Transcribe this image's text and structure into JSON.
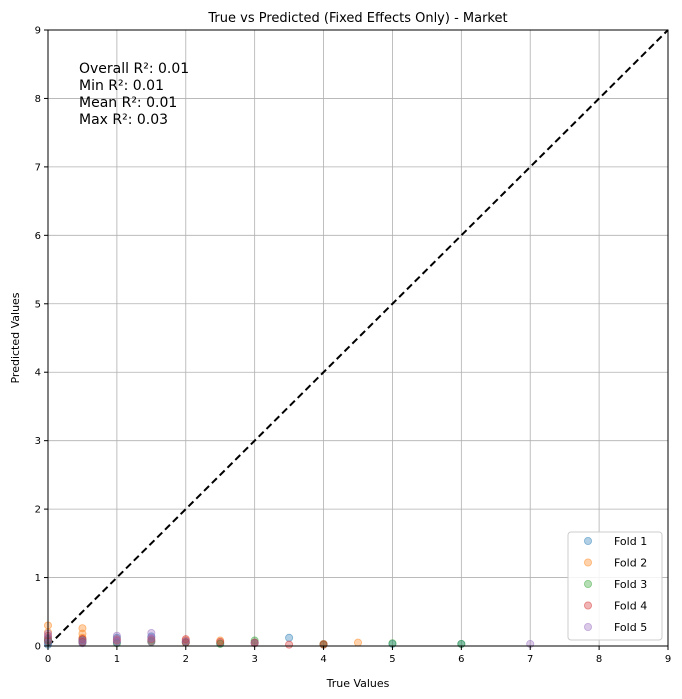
{
  "chart_data": {
    "type": "scatter",
    "title": "True vs Predicted (Fixed Effects Only) - Market",
    "xlabel": "True Values",
    "ylabel": "Predicted Values",
    "xlim": [
      0,
      9
    ],
    "ylim": [
      0,
      9
    ],
    "xticks": [
      "0",
      "1",
      "2",
      "3",
      "4",
      "5",
      "6",
      "7",
      "8",
      "9"
    ],
    "yticks": [
      "0",
      "1",
      "2",
      "3",
      "4",
      "5",
      "6",
      "7",
      "8",
      "9"
    ],
    "grid": true,
    "legend_position": "bottom-right",
    "reference_line": {
      "style": "dashed",
      "color": "#000000",
      "from": [
        0,
        0
      ],
      "to": [
        9,
        9
      ]
    },
    "annotations": [
      "Overall R²: 0.01",
      "Min R²: 0.01",
      "Mean R²: 0.01",
      "Max R²: 0.03"
    ],
    "series": [
      {
        "name": "Fold 1",
        "color": "#1f77b4",
        "points": [
          [
            0,
            0.02
          ],
          [
            0,
            0.05
          ],
          [
            0,
            0.08
          ],
          [
            0,
            0.1
          ],
          [
            0.5,
            0.06
          ],
          [
            0.5,
            0.1
          ],
          [
            1,
            0.05
          ],
          [
            1,
            0.12
          ],
          [
            1.5,
            0.08
          ],
          [
            1.5,
            0.14
          ],
          [
            2,
            0.06
          ],
          [
            2.5,
            0.04
          ],
          [
            3,
            0.05
          ],
          [
            3.5,
            0.12
          ],
          [
            4,
            0.03
          ],
          [
            5,
            0.03
          ],
          [
            6,
            0.03
          ]
        ]
      },
      {
        "name": "Fold 2",
        "color": "#ff7f0e",
        "points": [
          [
            0,
            0.3
          ],
          [
            0,
            0.2
          ],
          [
            0,
            0.12
          ],
          [
            0.5,
            0.26
          ],
          [
            0.5,
            0.18
          ],
          [
            0.5,
            0.12
          ],
          [
            1,
            0.1
          ],
          [
            1.5,
            0.07
          ],
          [
            2,
            0.08
          ],
          [
            2.5,
            0.08
          ],
          [
            3,
            0.04
          ],
          [
            4,
            0.03
          ],
          [
            4.5,
            0.05
          ]
        ]
      },
      {
        "name": "Fold 3",
        "color": "#2ca02c",
        "points": [
          [
            0,
            0.06
          ],
          [
            0,
            0.1
          ],
          [
            0.5,
            0.05
          ],
          [
            0.5,
            0.08
          ],
          [
            1,
            0.04
          ],
          [
            1.5,
            0.06
          ],
          [
            2,
            0.05
          ],
          [
            2.5,
            0.03
          ],
          [
            3,
            0.08
          ],
          [
            4,
            0.02
          ],
          [
            5,
            0.04
          ],
          [
            6,
            0.03
          ]
        ]
      },
      {
        "name": "Fold 4",
        "color": "#d62728",
        "points": [
          [
            0,
            0.15
          ],
          [
            0,
            0.08
          ],
          [
            0.5,
            0.1
          ],
          [
            0.5,
            0.06
          ],
          [
            1,
            0.08
          ],
          [
            1.5,
            0.1
          ],
          [
            2,
            0.1
          ],
          [
            2,
            0.05
          ],
          [
            2.5,
            0.06
          ],
          [
            3,
            0.05
          ],
          [
            3.5,
            0.02
          ],
          [
            4,
            0.02
          ]
        ]
      },
      {
        "name": "Fold 5",
        "color": "#9467bd",
        "points": [
          [
            0,
            0.18
          ],
          [
            0,
            0.12
          ],
          [
            0,
            0.05
          ],
          [
            0.5,
            0.08
          ],
          [
            0.5,
            0.04
          ],
          [
            1,
            0.15
          ],
          [
            1,
            0.1
          ],
          [
            1,
            0.06
          ],
          [
            1.5,
            0.19
          ],
          [
            1.5,
            0.12
          ],
          [
            1.5,
            0.06
          ],
          [
            2,
            0.07
          ],
          [
            3,
            0.04
          ],
          [
            7,
            0.03
          ]
        ]
      }
    ]
  }
}
